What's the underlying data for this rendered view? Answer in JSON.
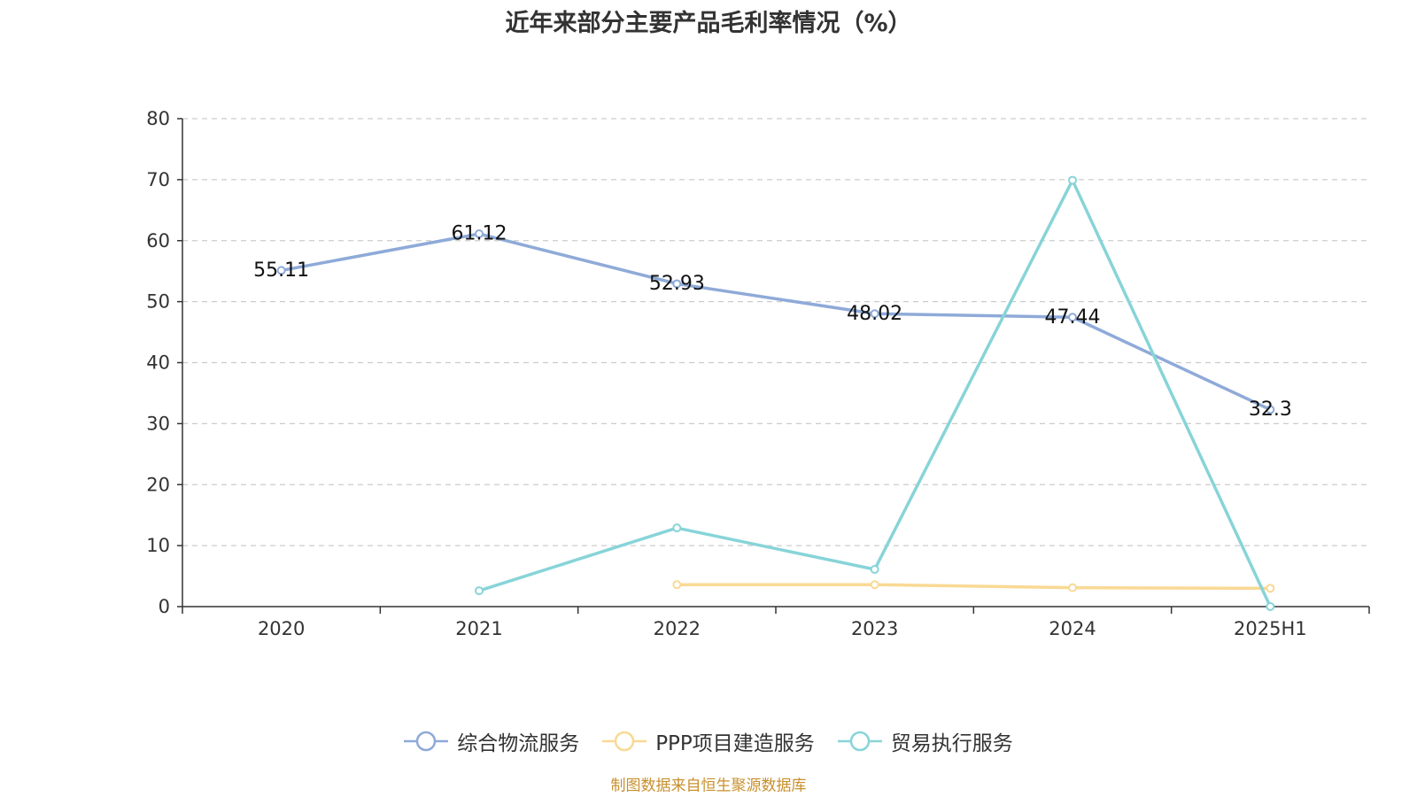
{
  "title": "近年来部分主要产品毛利率情况（%）",
  "source": "制图数据来自恒生聚源数据库",
  "chart_data": {
    "type": "line",
    "title": "近年来部分主要产品毛利率情况（%）",
    "categories": [
      "2020",
      "2021",
      "2022",
      "2023",
      "2024",
      "2025H1"
    ],
    "ylim": [
      0,
      80
    ],
    "yticks": [
      0,
      10,
      20,
      30,
      40,
      50,
      60,
      70,
      80
    ],
    "grid": true,
    "legend_position": "bottom",
    "series": [
      {
        "name": "综合物流服务",
        "color": "#8eaad8",
        "show_labels": true,
        "values": [
          55.11,
          61.12,
          52.93,
          48.02,
          47.44,
          32.3
        ],
        "labels": [
          "55.11",
          "61.12",
          "52.93",
          "48.02",
          "47.44",
          "32.3"
        ]
      },
      {
        "name": "PPP项目建造服务",
        "color": "#f9d994",
        "show_labels": false,
        "values": [
          null,
          null,
          3.6,
          3.6,
          3.1,
          3.0
        ]
      },
      {
        "name": "贸易执行服务",
        "color": "#87d4d8",
        "show_labels": false,
        "values": [
          null,
          2.6,
          12.9,
          6.1,
          69.9,
          0.0
        ]
      }
    ]
  }
}
